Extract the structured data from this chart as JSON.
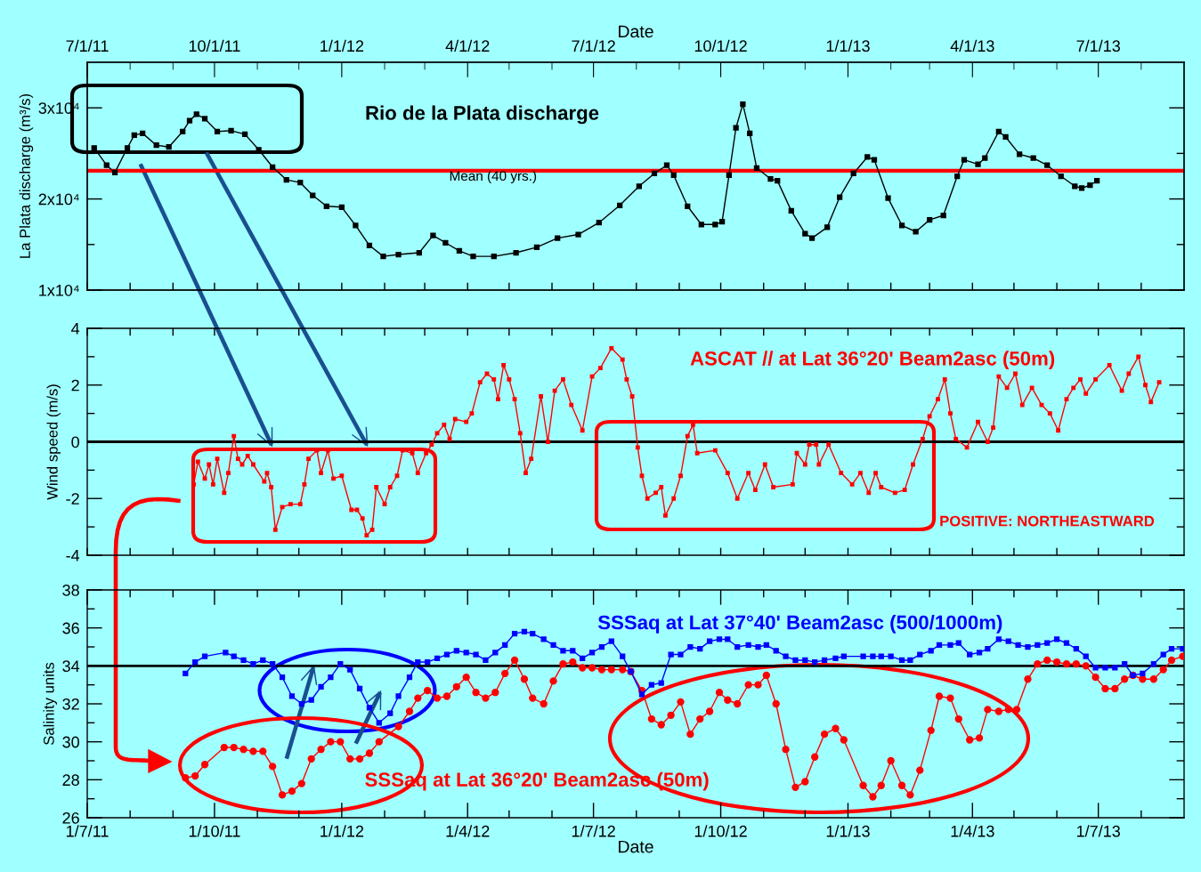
{
  "chart_data": [
    {
      "type": "line",
      "ylabel": "La Plata discharge (m³/s)",
      "x2label": "Date",
      "tick_labels": "y",
      "xlim": [
        "2011-07-01",
        "2013-09-01"
      ],
      "x2lim": [
        "2011-07-01",
        "2013-09-01"
      ],
      "xticks": [
        {
          "value": "2011-07-01",
          "label": null
        },
        {
          "value": "2011-08-01",
          "label": null
        },
        {
          "value": "2011-09-01",
          "label": null
        },
        {
          "value": "2011-10-01",
          "label": null
        },
        {
          "value": "2011-11-01",
          "label": null
        },
        {
          "value": "2011-12-01",
          "label": null
        },
        {
          "value": "2012-01-01",
          "label": null
        },
        {
          "value": "2012-02-01",
          "label": null
        },
        {
          "value": "2012-03-01",
          "label": null
        },
        {
          "value": "2012-04-01",
          "label": null
        },
        {
          "value": "2012-05-01",
          "label": null
        },
        {
          "value": "2012-06-01",
          "label": null
        },
        {
          "value": "2012-07-01",
          "label": null
        },
        {
          "value": "2012-08-01",
          "label": null
        },
        {
          "value": "2012-09-01",
          "label": null
        },
        {
          "value": "2012-10-01",
          "label": null
        },
        {
          "value": "2012-11-01",
          "label": null
        },
        {
          "value": "2012-12-01",
          "label": null
        },
        {
          "value": "2013-01-01",
          "label": null
        },
        {
          "value": "2013-02-01",
          "label": null
        },
        {
          "value": "2013-03-01",
          "label": null
        },
        {
          "value": "2013-04-01",
          "label": null
        },
        {
          "value": "2013-05-01",
          "label": null
        },
        {
          "value": "2013-06-01",
          "label": null
        },
        {
          "value": "2013-07-01",
          "label": null
        },
        {
          "value": "2013-08-01",
          "label": null
        }
      ],
      "x2ticks": [
        {
          "value": "2011-07-01",
          "label": "7/1/11"
        },
        {
          "value": "2011-08-01",
          "label": null
        },
        {
          "value": "2011-09-01",
          "label": null
        },
        {
          "value": "2011-10-01",
          "label": "10/1/11"
        },
        {
          "value": "2011-11-01",
          "label": null
        },
        {
          "value": "2011-12-01",
          "label": null
        },
        {
          "value": "2012-01-01",
          "label": "1/1/12"
        },
        {
          "value": "2012-02-01",
          "label": null
        },
        {
          "value": "2012-03-01",
          "label": null
        },
        {
          "value": "2012-04-01",
          "label": "4/1/12"
        },
        {
          "value": "2012-05-01",
          "label": null
        },
        {
          "value": "2012-06-01",
          "label": null
        },
        {
          "value": "2012-07-01",
          "label": "7/1/12"
        },
        {
          "value": "2012-08-01",
          "label": null
        },
        {
          "value": "2012-09-01",
          "label": null
        },
        {
          "value": "2012-10-01",
          "label": "10/1/12"
        },
        {
          "value": "2012-11-01",
          "label": null
        },
        {
          "value": "2012-12-01",
          "label": null
        },
        {
          "value": "2013-01-01",
          "label": "1/1/13"
        },
        {
          "value": "2013-02-01",
          "label": null
        },
        {
          "value": "2013-03-01",
          "label": null
        },
        {
          "value": "2013-04-01",
          "label": "4/1/13"
        },
        {
          "value": "2013-05-01",
          "label": null
        },
        {
          "value": "2013-06-01",
          "label": null
        },
        {
          "value": "2013-07-01",
          "label": "7/1/13"
        },
        {
          "value": "2013-08-01",
          "label": null
        }
      ],
      "ylim": [
        10000,
        35000
      ],
      "yticks": [
        {
          "value": 10000,
          "label": "1x10⁴"
        },
        {
          "value": 15000,
          "label": null
        },
        {
          "value": 20000,
          "label": "2x10⁴"
        },
        {
          "value": 25000,
          "label": null
        },
        {
          "value": 30000,
          "label": "3x10⁴"
        }
      ],
      "ref_lines": [
        {
          "axis": "y",
          "value": 23100,
          "label": "Mean (40 yrs.)",
          "color": "#ff0000"
        }
      ],
      "series": [
        {
          "name": "Rio de la Plata discharge",
          "color": "#000000",
          "marker": "square",
          "x": [
            "2011-07-06",
            "2011-07-15",
            "2011-07-21",
            "2011-07-30",
            "2011-08-04",
            "2011-08-10",
            "2011-08-20",
            "2011-08-29",
            "2011-09-08",
            "2011-09-13",
            "2011-09-18",
            "2011-09-24",
            "2011-10-03",
            "2011-10-13",
            "2011-10-23",
            "2011-11-02",
            "2011-11-12",
            "2011-11-22",
            "2011-12-02",
            "2011-12-11",
            "2011-12-21",
            "2012-01-01",
            "2012-01-11",
            "2012-01-21",
            "2012-01-31",
            "2012-02-11",
            "2012-02-26",
            "2012-03-07",
            "2012-03-16",
            "2012-03-26",
            "2012-04-05",
            "2012-04-20",
            "2012-05-06",
            "2012-05-21",
            "2012-06-05",
            "2012-06-20",
            "2012-07-05",
            "2012-07-20",
            "2012-08-03",
            "2012-08-14",
            "2012-08-23",
            "2012-08-28",
            "2012-09-07",
            "2012-09-17",
            "2012-09-27",
            "2012-10-02",
            "2012-10-07",
            "2012-10-12",
            "2012-10-17",
            "2012-10-22",
            "2012-10-27",
            "2012-11-06",
            "2012-11-11",
            "2012-11-21",
            "2012-12-01",
            "2012-12-06",
            "2012-12-17",
            "2012-12-26",
            "2013-01-05",
            "2013-01-15",
            "2013-01-20",
            "2013-01-30",
            "2013-02-09",
            "2013-02-19",
            "2013-03-01",
            "2013-03-11",
            "2013-03-21",
            "2013-03-26",
            "2013-04-05",
            "2013-04-10",
            "2013-04-20",
            "2013-04-25",
            "2013-05-05",
            "2013-05-15",
            "2013-05-25",
            "2013-06-04",
            "2013-06-14",
            "2013-06-19",
            "2013-06-25",
            "2013-06-30"
          ],
          "values": [
            25600,
            23700,
            22900,
            25600,
            27000,
            27200,
            25900,
            25700,
            27400,
            28600,
            29300,
            28800,
            27400,
            27500,
            27100,
            25400,
            23500,
            22100,
            21800,
            20400,
            19200,
            19100,
            17100,
            14900,
            13700,
            13900,
            14100,
            16000,
            15200,
            14300,
            13700,
            13700,
            14100,
            14700,
            15700,
            16100,
            17400,
            19300,
            21400,
            22800,
            23700,
            22600,
            19200,
            17200,
            17200,
            17500,
            22600,
            27800,
            30400,
            27200,
            23400,
            22200,
            22000,
            18700,
            16200,
            15700,
            16900,
            20200,
            22800,
            24600,
            24300,
            20100,
            17100,
            16400,
            17700,
            18200,
            22500,
            24300,
            23800,
            24500,
            27400,
            26800,
            24900,
            24500,
            23700,
            22500,
            21400,
            21200,
            21500,
            22000
          ]
        }
      ]
    },
    {
      "type": "line",
      "ylabel": "Wind speed (m/s)",
      "tick_labels": "y",
      "annotations": [
        "POSITIVE: NORTHEASTWARD"
      ],
      "xlim": [
        "2011-07-01",
        "2013-09-01"
      ],
      "xticks": [
        {
          "value": "2011-07-01",
          "label": null
        },
        {
          "value": "2011-08-01",
          "label": null
        },
        {
          "value": "2011-09-01",
          "label": null
        },
        {
          "value": "2011-10-01",
          "label": null
        },
        {
          "value": "2011-11-01",
          "label": null
        },
        {
          "value": "2011-12-01",
          "label": null
        },
        {
          "value": "2012-01-01",
          "label": null
        },
        {
          "value": "2012-02-01",
          "label": null
        },
        {
          "value": "2012-03-01",
          "label": null
        },
        {
          "value": "2012-04-01",
          "label": null
        },
        {
          "value": "2012-05-01",
          "label": null
        },
        {
          "value": "2012-06-01",
          "label": null
        },
        {
          "value": "2012-07-01",
          "label": null
        },
        {
          "value": "2012-08-01",
          "label": null
        },
        {
          "value": "2012-09-01",
          "label": null
        },
        {
          "value": "2012-10-01",
          "label": null
        },
        {
          "value": "2012-11-01",
          "label": null
        },
        {
          "value": "2012-12-01",
          "label": null
        },
        {
          "value": "2013-01-01",
          "label": null
        },
        {
          "value": "2013-02-01",
          "label": null
        },
        {
          "value": "2013-03-01",
          "label": null
        },
        {
          "value": "2013-04-01",
          "label": null
        },
        {
          "value": "2013-05-01",
          "label": null
        },
        {
          "value": "2013-06-01",
          "label": null
        },
        {
          "value": "2013-07-01",
          "label": null
        },
        {
          "value": "2013-08-01",
          "label": null
        }
      ],
      "ylim": [
        -4,
        4
      ],
      "yticks": [
        {
          "value": -4,
          "label": "-4"
        },
        {
          "value": -3,
          "label": null
        },
        {
          "value": -2,
          "label": "-2"
        },
        {
          "value": -1,
          "label": null
        },
        0,
        {
          "value": 1,
          "label": null
        },
        2,
        {
          "value": 3,
          "label": null
        },
        4
      ],
      "ref_lines": [
        {
          "axis": "y",
          "value": 0,
          "label": null,
          "color": "#000000"
        }
      ],
      "series": [
        {
          "name": "ASCAT // at Lat 36°20' Beam2asc (50m)",
          "color": "#ff0000",
          "marker": "square",
          "x": [
            "2011-09-16",
            "2011-09-19",
            "2011-09-24",
            "2011-09-27",
            "2011-09-30",
            "2011-10-03",
            "2011-10-08",
            "2011-10-11",
            "2011-10-15",
            "2011-10-18",
            "2011-10-21",
            "2011-10-25",
            "2011-10-29",
            "2011-11-06",
            "2011-11-08",
            "2011-11-11",
            "2011-11-14",
            "2011-11-19",
            "2011-11-25",
            "2011-12-02",
            "2011-12-05",
            "2011-12-08",
            "2011-12-14",
            "2011-12-17",
            "2011-12-22",
            "2011-12-26",
            "2012-01-01",
            "2012-01-08",
            "2012-01-12",
            "2012-01-16",
            "2012-01-19",
            "2012-01-23",
            "2012-01-26",
            "2012-02-01",
            "2012-02-05",
            "2012-02-10",
            "2012-02-14",
            "2012-02-21",
            "2012-02-25",
            "2012-03-02",
            "2012-03-06",
            "2012-03-10",
            "2012-03-15",
            "2012-03-19",
            "2012-03-23",
            "2012-03-31",
            "2012-04-04",
            "2012-04-10",
            "2012-04-15",
            "2012-04-20",
            "2012-04-23",
            "2012-04-27",
            "2012-05-01",
            "2012-05-05",
            "2012-05-09",
            "2012-05-13",
            "2012-05-17",
            "2012-05-24",
            "2012-05-29",
            "2012-06-03",
            "2012-06-09",
            "2012-06-15",
            "2012-06-23",
            "2012-06-30",
            "2012-07-06",
            "2012-07-14",
            "2012-07-22",
            "2012-07-25",
            "2012-07-29",
            "2012-08-02",
            "2012-08-05",
            "2012-08-09",
            "2012-08-15",
            "2012-08-19",
            "2012-08-22",
            "2012-08-28",
            "2012-09-02",
            "2012-09-07",
            "2012-09-11",
            "2012-09-14",
            "2012-09-27",
            "2012-10-06",
            "2012-10-13",
            "2012-10-21",
            "2012-10-26",
            "2012-11-02",
            "2012-11-08",
            "2012-11-22",
            "2012-11-25",
            "2012-12-01",
            "2012-12-04",
            "2012-12-09",
            "2012-12-11",
            "2012-12-18",
            "2012-12-27",
            "2013-01-04",
            "2013-01-10",
            "2013-01-16",
            "2013-01-21",
            "2013-01-25",
            "2013-02-04",
            "2013-02-11",
            "2013-02-17",
            "2013-02-24",
            "2013-03-01",
            "2013-03-07",
            "2013-03-12",
            "2013-03-16",
            "2013-03-20",
            "2013-03-28",
            "2013-04-05",
            "2013-04-12",
            "2013-04-16",
            "2013-04-20",
            "2013-04-26",
            "2013-05-02",
            "2013-05-07",
            "2013-05-14",
            "2013-05-21",
            "2013-05-27",
            "2013-06-02",
            "2013-06-08",
            "2013-06-13",
            "2013-06-18",
            "2013-06-22",
            "2013-06-29",
            "2013-07-09",
            "2013-07-18",
            "2013-07-23",
            "2013-07-30",
            "2013-08-04",
            "2013-08-08",
            "2013-08-14"
          ],
          "values": [
            -1.5,
            -0.7,
            -1.3,
            -0.8,
            -1.5,
            -0.6,
            -1.8,
            -1.1,
            0.2,
            -0.6,
            -0.8,
            -0.5,
            -0.8,
            -1.4,
            -1.1,
            -1.6,
            -3.1,
            -2.3,
            -2.2,
            -2.2,
            -1.5,
            -0.6,
            -0.3,
            -1.1,
            -0.3,
            -1.3,
            -1.2,
            -2.4,
            -2.4,
            -2.7,
            -3.3,
            -3.1,
            -1.6,
            -2.2,
            -1.6,
            -1.2,
            -0.3,
            -0.4,
            -1.1,
            -0.4,
            -0.1,
            0.3,
            0.6,
            0.1,
            0.8,
            0.7,
            1.0,
            2.1,
            2.4,
            2.2,
            1.5,
            2.7,
            2.2,
            1.5,
            0.3,
            -1.1,
            -0.6,
            1.6,
            0.0,
            1.8,
            2.2,
            1.3,
            0.4,
            2.3,
            2.6,
            3.3,
            2.9,
            2.2,
            1.6,
            -0.2,
            -1.2,
            -2.0,
            -1.8,
            -1.6,
            -2.6,
            -2.0,
            -1.2,
            0.2,
            0.6,
            -0.4,
            -0.3,
            -1.1,
            -2.0,
            -1.1,
            -1.7,
            -0.8,
            -1.6,
            -1.5,
            -0.4,
            -0.8,
            -0.1,
            -0.1,
            -0.8,
            -0.1,
            -1.1,
            -1.5,
            -1.1,
            -1.8,
            -1.1,
            -1.6,
            -1.8,
            -1.7,
            -0.8,
            0.1,
            0.9,
            1.5,
            2.2,
            1.0,
            0.1,
            -0.2,
            0.7,
            0.0,
            0.5,
            2.3,
            1.9,
            2.4,
            1.3,
            1.9,
            1.3,
            1.0,
            0.4,
            1.5,
            1.9,
            2.2,
            1.7,
            2.2,
            2.7,
            1.8,
            2.4,
            3.0,
            2.0,
            1.4,
            2.1
          ]
        }
      ]
    },
    {
      "type": "line",
      "ylabel": "Salinity units",
      "xlabel": "Date",
      "xlim": [
        "2011-07-01",
        "2013-09-01"
      ],
      "xticks": [
        {
          "value": "2011-07-01",
          "label": "1/7/11"
        },
        {
          "value": "2011-08-01",
          "label": null
        },
        {
          "value": "2011-09-01",
          "label": null
        },
        {
          "value": "2011-10-01",
          "label": "1/10/11"
        },
        {
          "value": "2011-11-01",
          "label": null
        },
        {
          "value": "2011-12-01",
          "label": null
        },
        {
          "value": "2012-01-01",
          "label": "1/1/12"
        },
        {
          "value": "2012-02-01",
          "label": null
        },
        {
          "value": "2012-03-01",
          "label": null
        },
        {
          "value": "2012-04-01",
          "label": "1/4/12"
        },
        {
          "value": "2012-05-01",
          "label": null
        },
        {
          "value": "2012-06-01",
          "label": null
        },
        {
          "value": "2012-07-01",
          "label": "1/7/12"
        },
        {
          "value": "2012-08-01",
          "label": null
        },
        {
          "value": "2012-09-01",
          "label": null
        },
        {
          "value": "2012-10-01",
          "label": "1/10/12"
        },
        {
          "value": "2012-11-01",
          "label": null
        },
        {
          "value": "2012-12-01",
          "label": null
        },
        {
          "value": "2013-01-01",
          "label": "1/1/13"
        },
        {
          "value": "2013-02-01",
          "label": null
        },
        {
          "value": "2013-03-01",
          "label": null
        },
        {
          "value": "2013-04-01",
          "label": "1/4/13"
        },
        {
          "value": "2013-05-01",
          "label": null
        },
        {
          "value": "2013-06-01",
          "label": null
        },
        {
          "value": "2013-07-01",
          "label": "1/7/13"
        },
        {
          "value": "2013-08-01",
          "label": null
        }
      ],
      "ylim": [
        26,
        38
      ],
      "yticks": [
        26,
        {
          "value": 27,
          "label": null
        },
        28,
        {
          "value": 29,
          "label": null
        },
        30,
        {
          "value": 31,
          "label": null
        },
        32,
        {
          "value": 33,
          "label": null
        },
        34,
        {
          "value": 35,
          "label": null
        },
        36,
        {
          "value": 37,
          "label": null
        },
        38
      ],
      "ref_lines": [
        {
          "axis": "y",
          "value": 34,
          "label": null,
          "color": "#000000"
        }
      ],
      "series": [
        {
          "name": "SSSaq at Lat 37°40' Beam2asc (500/1000m)",
          "color": "#0000ff",
          "marker": "square",
          "x": [
            "2011-09-10",
            "2011-09-17",
            "2011-09-24",
            "2011-10-09",
            "2011-10-15",
            "2011-10-22",
            "2011-10-29",
            "2011-11-05",
            "2011-11-12",
            "2011-11-19",
            "2011-11-26",
            "2011-12-03",
            "2011-12-10",
            "2011-12-17",
            "2011-12-24",
            "2011-12-31",
            "2012-01-07",
            "2012-01-14",
            "2012-01-21",
            "2012-01-28",
            "2012-02-05",
            "2012-02-11",
            "2012-02-19",
            "2012-02-25",
            "2012-03-03",
            "2012-03-10",
            "2012-03-17",
            "2012-03-24",
            "2012-03-31",
            "2012-04-07",
            "2012-04-14",
            "2012-04-21",
            "2012-04-28",
            "2012-05-05",
            "2012-05-12",
            "2012-05-18",
            "2012-05-26",
            "2012-06-02",
            "2012-06-09",
            "2012-06-16",
            "2012-06-23",
            "2012-06-30",
            "2012-07-07",
            "2012-07-14",
            "2012-07-22",
            "2012-07-28",
            "2012-08-05",
            "2012-08-12",
            "2012-08-19",
            "2012-08-26",
            "2012-09-02",
            "2012-09-09",
            "2012-09-16",
            "2012-09-23",
            "2012-09-30",
            "2012-10-06",
            "2012-10-13",
            "2012-10-21",
            "2012-10-28",
            "2012-11-03",
            "2012-11-10",
            "2012-11-17",
            "2012-11-24",
            "2012-12-01",
            "2012-12-08",
            "2012-12-15",
            "2012-12-23",
            "2012-12-29",
            "2013-01-12",
            "2013-01-19",
            "2013-01-25",
            "2013-02-01",
            "2013-02-09",
            "2013-02-15",
            "2013-02-22",
            "2013-03-02",
            "2013-03-08",
            "2013-03-16",
            "2013-03-22",
            "2013-03-30",
            "2013-04-06",
            "2013-04-12",
            "2013-04-20",
            "2013-04-27",
            "2013-05-04",
            "2013-05-11",
            "2013-05-18",
            "2013-05-25",
            "2013-06-01",
            "2013-06-08",
            "2013-06-15",
            "2013-06-22",
            "2013-06-29",
            "2013-07-06",
            "2013-07-13",
            "2013-07-20",
            "2013-07-26",
            "2013-08-02",
            "2013-08-10",
            "2013-08-17",
            "2013-08-23",
            "2013-08-31"
          ],
          "values": [
            33.6,
            34.2,
            34.5,
            34.7,
            34.5,
            34.3,
            34.1,
            34.3,
            34.1,
            33.4,
            32.4,
            32.0,
            32.2,
            32.9,
            33.4,
            34.1,
            33.8,
            32.8,
            31.8,
            31.0,
            31.5,
            32.4,
            33.4,
            34.2,
            34.2,
            34.4,
            34.6,
            34.8,
            34.7,
            34.6,
            34.3,
            34.7,
            35.1,
            35.7,
            35.8,
            35.7,
            35.4,
            35.1,
            34.8,
            34.8,
            34.4,
            34.7,
            35.0,
            35.3,
            34.5,
            33.7,
            32.5,
            33.0,
            33.1,
            34.6,
            34.6,
            35.0,
            34.9,
            35.3,
            35.4,
            35.4,
            35.0,
            35.1,
            35.0,
            35.1,
            34.8,
            34.5,
            34.3,
            34.3,
            34.2,
            34.3,
            34.4,
            34.5,
            34.5,
            34.5,
            34.5,
            34.5,
            34.3,
            34.3,
            34.6,
            34.8,
            35.1,
            35.1,
            35.2,
            34.6,
            34.7,
            34.9,
            35.4,
            35.3,
            35.1,
            35.0,
            35.1,
            35.2,
            35.4,
            35.2,
            34.9,
            34.5,
            33.9,
            33.9,
            33.9,
            34.1,
            33.5,
            33.6,
            34.1,
            34.6,
            34.9,
            34.9
          ]
        },
        {
          "name": "SSSaq at Lat 36°20' Beam2asc (50m)",
          "color": "#ff0000",
          "marker": "circle",
          "x": [
            "2011-09-10",
            "2011-09-17",
            "2011-09-24",
            "2011-10-08",
            "2011-10-15",
            "2011-10-22",
            "2011-10-29",
            "2011-11-05",
            "2011-11-12",
            "2011-11-19",
            "2011-11-26",
            "2011-12-03",
            "2011-12-10",
            "2011-12-17",
            "2011-12-24",
            "2011-12-31",
            "2012-01-07",
            "2012-01-14",
            "2012-01-21",
            "2012-01-28",
            "2012-02-11",
            "2012-02-19",
            "2012-02-25",
            "2012-03-03",
            "2012-03-10",
            "2012-03-17",
            "2012-03-24",
            "2012-03-31",
            "2012-04-07",
            "2012-04-14",
            "2012-04-21",
            "2012-04-28",
            "2012-05-05",
            "2012-05-12",
            "2012-05-18",
            "2012-05-26",
            "2012-06-02",
            "2012-06-09",
            "2012-06-16",
            "2012-06-23",
            "2012-06-30",
            "2012-07-07",
            "2012-07-14",
            "2012-07-22",
            "2012-07-28",
            "2012-08-05",
            "2012-08-12",
            "2012-08-19",
            "2012-08-26",
            "2012-09-02",
            "2012-09-09",
            "2012-09-16",
            "2012-09-23",
            "2012-09-30",
            "2012-10-06",
            "2012-10-13",
            "2012-10-21",
            "2012-10-28",
            "2012-11-03",
            "2012-11-10",
            "2012-11-17",
            "2012-11-24",
            "2012-12-01",
            "2012-12-08",
            "2012-12-15",
            "2012-12-23",
            "2012-12-29",
            "2013-01-12",
            "2013-01-19",
            "2013-01-25",
            "2013-02-01",
            "2013-02-09",
            "2013-02-15",
            "2013-02-22",
            "2013-03-02",
            "2013-03-08",
            "2013-03-16",
            "2013-03-22",
            "2013-03-30",
            "2013-04-06",
            "2013-04-12",
            "2013-04-20",
            "2013-04-27",
            "2013-05-03",
            "2013-05-11",
            "2013-05-18",
            "2013-05-25",
            "2013-06-01",
            "2013-06-08",
            "2013-06-15",
            "2013-06-22",
            "2013-06-29",
            "2013-07-06",
            "2013-07-13",
            "2013-07-20",
            "2013-07-26",
            "2013-08-02",
            "2013-08-10",
            "2013-08-17",
            "2013-08-23",
            "2013-08-31"
          ],
          "values": [
            28.1,
            28.2,
            28.8,
            29.7,
            29.7,
            29.6,
            29.5,
            29.5,
            28.7,
            27.2,
            27.4,
            27.8,
            29.1,
            29.6,
            30.0,
            30.0,
            29.1,
            29.1,
            29.4,
            30.0,
            30.8,
            31.6,
            32.3,
            32.7,
            32.3,
            32.4,
            32.9,
            33.4,
            32.6,
            32.3,
            32.6,
            33.6,
            34.3,
            33.3,
            32.3,
            32.0,
            33.2,
            34.1,
            34.2,
            33.9,
            33.9,
            33.8,
            33.8,
            33.8,
            33.7,
            32.7,
            31.2,
            30.9,
            31.4,
            32.1,
            30.4,
            31.2,
            31.6,
            32.6,
            32.2,
            32.0,
            33.0,
            33.0,
            33.5,
            32.0,
            29.6,
            27.6,
            27.9,
            29.2,
            30.4,
            30.7,
            30.1,
            27.7,
            27.1,
            27.7,
            29.0,
            27.7,
            27.2,
            28.5,
            30.6,
            32.4,
            32.3,
            31.2,
            30.1,
            30.2,
            31.7,
            31.6,
            31.7,
            31.7,
            33.3,
            34.1,
            34.3,
            34.2,
            34.1,
            34.1,
            34.0,
            33.4,
            32.8,
            32.8,
            33.3,
            33.5,
            33.3,
            33.3,
            33.8,
            34.3,
            34.5
          ]
        }
      ]
    }
  ]
}
